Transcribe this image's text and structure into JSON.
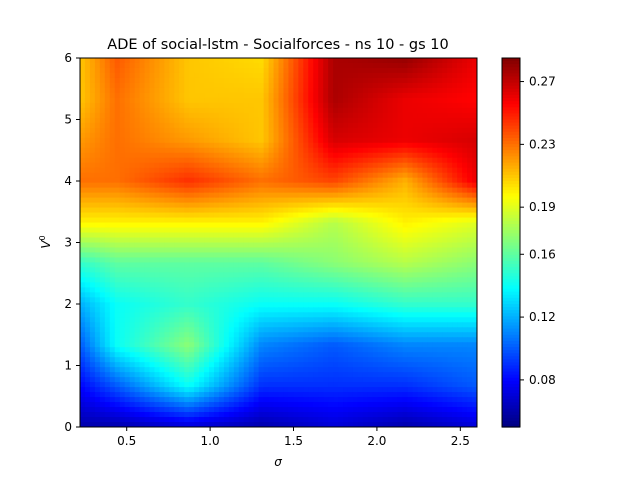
{
  "chart_data": {
    "type": "heatmap",
    "title": "ADE of social-lstm - Socialforces - ns 10 - gs 10",
    "xlabel": "σ",
    "ylabel": "V",
    "ylabel_superscript": "0",
    "xlim": [
      0.22,
      2.6
    ],
    "ylim": [
      0,
      6
    ],
    "x_ticks": [
      0.5,
      1.0,
      1.5,
      2.0,
      2.5
    ],
    "x_tick_labels": [
      "0.5",
      "1.0",
      "1.5",
      "2.0",
      "2.5"
    ],
    "y_ticks": [
      0,
      1,
      2,
      3,
      4,
      5,
      6
    ],
    "y_tick_labels": [
      "0",
      "1",
      "2",
      "3",
      "4",
      "5",
      "6"
    ],
    "colormap": "jet",
    "colorbar": {
      "min": 0.05,
      "max": 0.285,
      "ticks": [
        0.08,
        0.12,
        0.16,
        0.19,
        0.23,
        0.27
      ],
      "tick_labels": [
        "0.08",
        "0.12",
        "0.16",
        "0.19",
        "0.23",
        "0.27"
      ]
    },
    "grid": false,
    "x": [
      0.22,
      0.44,
      0.87,
      1.31,
      1.74,
      2.17,
      2.6
    ],
    "y": [
      0,
      0.67,
      1.33,
      2,
      2.67,
      3.33,
      4,
      4.67,
      5.33,
      6
    ],
    "z": [
      [
        0.06,
        0.06,
        0.07,
        0.06,
        0.07,
        0.06,
        0.07
      ],
      [
        0.08,
        0.1,
        0.14,
        0.09,
        0.09,
        0.09,
        0.1
      ],
      [
        0.1,
        0.14,
        0.17,
        0.11,
        0.1,
        0.11,
        0.11
      ],
      [
        0.12,
        0.14,
        0.15,
        0.14,
        0.14,
        0.15,
        0.15
      ],
      [
        0.15,
        0.16,
        0.16,
        0.16,
        0.17,
        0.18,
        0.17
      ],
      [
        0.2,
        0.2,
        0.2,
        0.2,
        0.18,
        0.2,
        0.19
      ],
      [
        0.23,
        0.23,
        0.245,
        0.23,
        0.24,
        0.215,
        0.26
      ],
      [
        0.22,
        0.23,
        0.22,
        0.21,
        0.265,
        0.26,
        0.265
      ],
      [
        0.21,
        0.23,
        0.21,
        0.21,
        0.275,
        0.26,
        0.255
      ],
      [
        0.21,
        0.235,
        0.21,
        0.205,
        0.275,
        0.28,
        0.26
      ]
    ]
  }
}
